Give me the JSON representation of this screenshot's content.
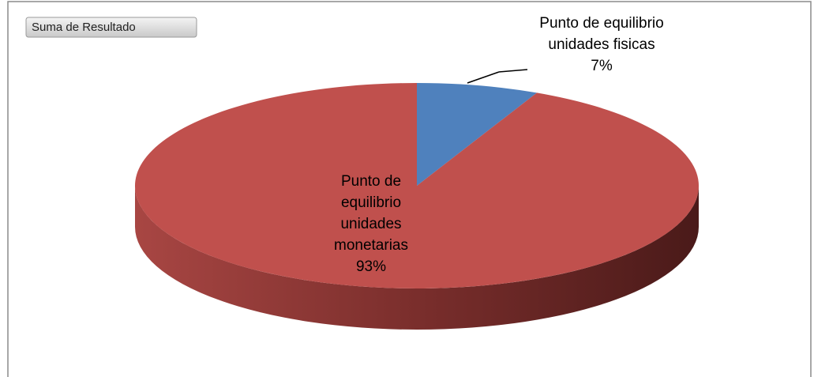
{
  "button": "Suma de Resultado",
  "chart_data": {
    "type": "pie",
    "categories": [
      "Punto de equilibrio unidades fisicas",
      "Punto de equilibrio unidades monetarias"
    ],
    "values": [
      7,
      93
    ],
    "value_labels": [
      "7%",
      "93%"
    ],
    "colors": [
      "#4f81bd",
      "#c0504d"
    ]
  }
}
